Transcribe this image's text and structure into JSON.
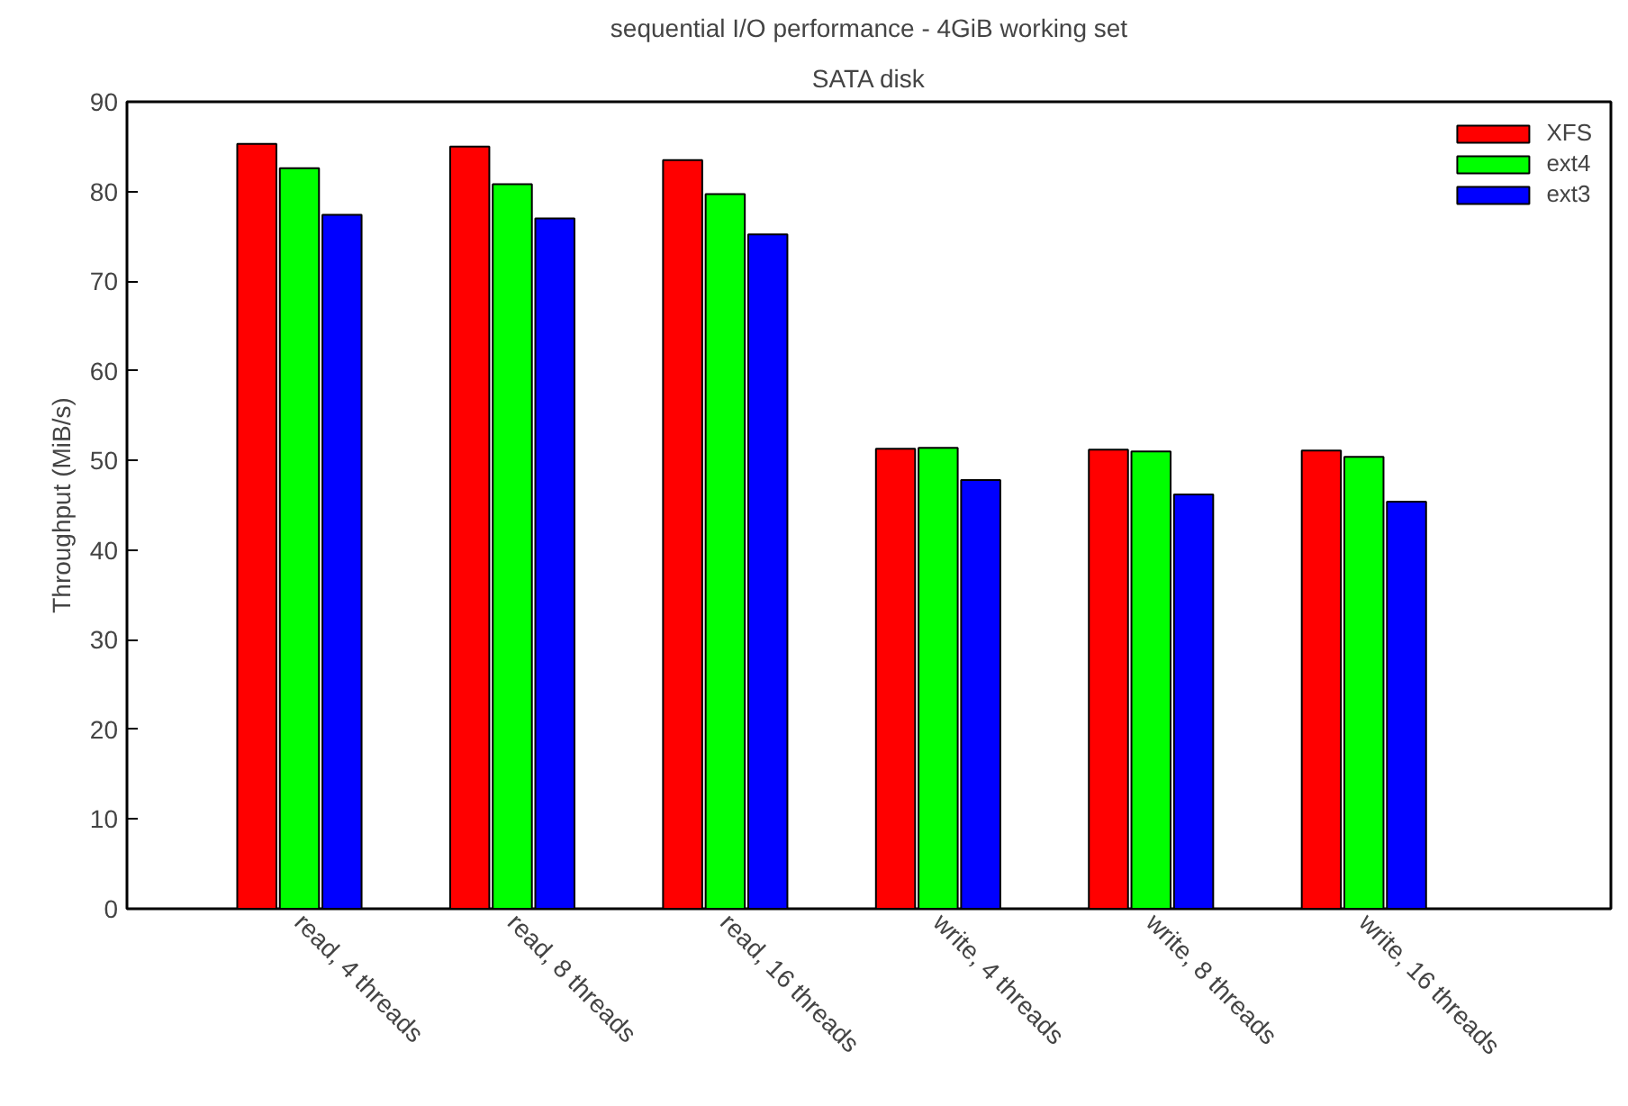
{
  "chart_data": {
    "type": "bar",
    "title": "sequential I/O performance - 4GiB working set",
    "subtitle": "SATA disk",
    "ylabel": "Throughput (MiB/s)",
    "categories": [
      "read, 4 threads",
      "read, 8 threads",
      "read, 16 threads",
      "write, 4 threads",
      "write, 8 threads",
      "write, 16 threads"
    ],
    "series": [
      {
        "name": "XFS",
        "color": "#ff0000",
        "values": [
          85.3,
          85.0,
          83.5,
          51.3,
          51.2,
          51.1
        ]
      },
      {
        "name": "ext4",
        "color": "#00ff00",
        "values": [
          82.6,
          80.8,
          79.7,
          51.4,
          51.0,
          50.4
        ]
      },
      {
        "name": "ext3",
        "color": "#0000ff",
        "values": [
          77.4,
          77.0,
          75.2,
          47.8,
          46.2,
          45.4
        ]
      }
    ],
    "ylim": [
      0,
      90
    ],
    "yticks": [
      0,
      10,
      20,
      30,
      40,
      50,
      60,
      70,
      80,
      90
    ],
    "grid": false,
    "legend": "top right"
  }
}
